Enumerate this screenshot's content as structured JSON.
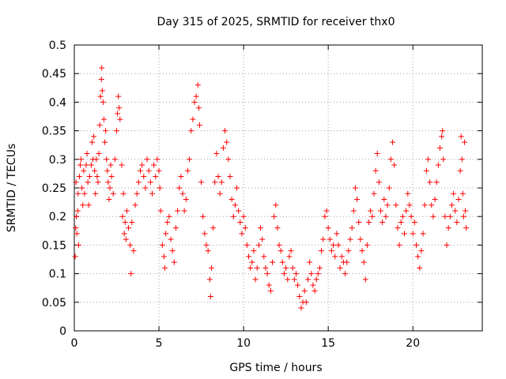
{
  "chart_data": {
    "type": "scatter",
    "title": "Day 315 of 2025, SRMTID for receiver thx0",
    "xlabel": "GPS time / hours",
    "ylabel": "SRMTID / TECUs",
    "xlim": [
      0,
      24.1
    ],
    "ylim": [
      0,
      0.5
    ],
    "xticks": [
      0,
      5,
      10,
      15,
      20
    ],
    "xtick_labels": [
      "0",
      "5",
      "10",
      "15",
      "20"
    ],
    "yticks": [
      0,
      0.05,
      0.1,
      0.15,
      0.2,
      0.25,
      0.3,
      0.35,
      0.4,
      0.45,
      0.5
    ],
    "ytick_labels": [
      "0",
      "0.05",
      "0.1",
      "0.15",
      "0.2",
      "0.25",
      "0.3",
      "0.35",
      "0.4",
      "0.45",
      "0.5"
    ],
    "grid": true,
    "marker": "+",
    "color": "#ff0000",
    "series": [
      {
        "points": [
          [
            0.05,
            0.13
          ],
          [
            0.08,
            0.18
          ],
          [
            0.1,
            0.26
          ],
          [
            0.12,
            0.2
          ],
          [
            0.15,
            0.17
          ],
          [
            0.2,
            0.21
          ],
          [
            0.22,
            0.24
          ],
          [
            0.25,
            0.15
          ],
          [
            0.3,
            0.27
          ],
          [
            0.35,
            0.29
          ],
          [
            0.4,
            0.3
          ],
          [
            0.45,
            0.25
          ],
          [
            0.5,
            0.22
          ],
          [
            0.55,
            0.28
          ],
          [
            0.6,
            0.24
          ],
          [
            0.7,
            0.29
          ],
          [
            0.75,
            0.31
          ],
          [
            0.8,
            0.26
          ],
          [
            0.85,
            0.22
          ],
          [
            0.9,
            0.27
          ],
          [
            1.0,
            0.29
          ],
          [
            1.05,
            0.33
          ],
          [
            1.1,
            0.3
          ],
          [
            1.15,
            0.34
          ],
          [
            1.2,
            0.28
          ],
          [
            1.25,
            0.24
          ],
          [
            1.3,
            0.3
          ],
          [
            1.35,
            0.27
          ],
          [
            1.4,
            0.26
          ],
          [
            1.45,
            0.31
          ],
          [
            1.5,
            0.36
          ],
          [
            1.55,
            0.41
          ],
          [
            1.6,
            0.44
          ],
          [
            1.62,
            0.46
          ],
          [
            1.65,
            0.42
          ],
          [
            1.7,
            0.4
          ],
          [
            1.75,
            0.37
          ],
          [
            1.8,
            0.33
          ],
          [
            1.85,
            0.35
          ],
          [
            1.9,
            0.3
          ],
          [
            1.95,
            0.28
          ],
          [
            2.0,
            0.26
          ],
          [
            2.05,
            0.23
          ],
          [
            2.1,
            0.25
          ],
          [
            2.15,
            0.29
          ],
          [
            2.2,
            0.27
          ],
          [
            2.3,
            0.24
          ],
          [
            2.4,
            0.3
          ],
          [
            2.5,
            0.35
          ],
          [
            2.55,
            0.38
          ],
          [
            2.6,
            0.41
          ],
          [
            2.65,
            0.39
          ],
          [
            2.7,
            0.37
          ],
          [
            2.8,
            0.29
          ],
          [
            2.85,
            0.2
          ],
          [
            2.9,
            0.24
          ],
          [
            2.95,
            0.17
          ],
          [
            3.0,
            0.19
          ],
          [
            3.05,
            0.16
          ],
          [
            3.1,
            0.21
          ],
          [
            3.2,
            0.18
          ],
          [
            3.3,
            0.15
          ],
          [
            3.35,
            0.1
          ],
          [
            3.4,
            0.19
          ],
          [
            3.5,
            0.14
          ],
          [
            3.6,
            0.22
          ],
          [
            3.7,
            0.24
          ],
          [
            3.8,
            0.26
          ],
          [
            3.9,
            0.28
          ],
          [
            4.0,
            0.29
          ],
          [
            4.1,
            0.27
          ],
          [
            4.2,
            0.25
          ],
          [
            4.3,
            0.3
          ],
          [
            4.4,
            0.28
          ],
          [
            4.5,
            0.26
          ],
          [
            4.6,
            0.24
          ],
          [
            4.7,
            0.29
          ],
          [
            4.8,
            0.27
          ],
          [
            4.9,
            0.3
          ],
          [
            5.0,
            0.28
          ],
          [
            5.05,
            0.25
          ],
          [
            5.1,
            0.21
          ],
          [
            5.2,
            0.15
          ],
          [
            5.3,
            0.13
          ],
          [
            5.35,
            0.11
          ],
          [
            5.4,
            0.17
          ],
          [
            5.5,
            0.19
          ],
          [
            5.6,
            0.2
          ],
          [
            5.7,
            0.16
          ],
          [
            5.8,
            0.14
          ],
          [
            5.9,
            0.12
          ],
          [
            6.0,
            0.18
          ],
          [
            6.1,
            0.21
          ],
          [
            6.2,
            0.25
          ],
          [
            6.3,
            0.27
          ],
          [
            6.4,
            0.24
          ],
          [
            6.5,
            0.21
          ],
          [
            6.6,
            0.23
          ],
          [
            6.7,
            0.28
          ],
          [
            6.8,
            0.3
          ],
          [
            6.9,
            0.35
          ],
          [
            7.0,
            0.37
          ],
          [
            7.1,
            0.4
          ],
          [
            7.2,
            0.41
          ],
          [
            7.3,
            0.43
          ],
          [
            7.35,
            0.39
          ],
          [
            7.4,
            0.36
          ],
          [
            7.5,
            0.26
          ],
          [
            7.6,
            0.2
          ],
          [
            7.7,
            0.17
          ],
          [
            7.8,
            0.15
          ],
          [
            7.9,
            0.14
          ],
          [
            8.0,
            0.09
          ],
          [
            8.05,
            0.06
          ],
          [
            8.1,
            0.11
          ],
          [
            8.2,
            0.18
          ],
          [
            8.3,
            0.26
          ],
          [
            8.4,
            0.31
          ],
          [
            8.5,
            0.27
          ],
          [
            8.6,
            0.24
          ],
          [
            8.7,
            0.26
          ],
          [
            8.8,
            0.32
          ],
          [
            8.9,
            0.35
          ],
          [
            9.0,
            0.33
          ],
          [
            9.1,
            0.3
          ],
          [
            9.2,
            0.27
          ],
          [
            9.3,
            0.23
          ],
          [
            9.4,
            0.2
          ],
          [
            9.5,
            0.22
          ],
          [
            9.6,
            0.25
          ],
          [
            9.7,
            0.21
          ],
          [
            9.8,
            0.19
          ],
          [
            9.9,
            0.17
          ],
          [
            10.0,
            0.2
          ],
          [
            10.1,
            0.18
          ],
          [
            10.2,
            0.15
          ],
          [
            10.3,
            0.13
          ],
          [
            10.4,
            0.11
          ],
          [
            10.5,
            0.12
          ],
          [
            10.6,
            0.14
          ],
          [
            10.7,
            0.09
          ],
          [
            10.8,
            0.11
          ],
          [
            10.9,
            0.15
          ],
          [
            11.0,
            0.18
          ],
          [
            11.1,
            0.16
          ],
          [
            11.2,
            0.13
          ],
          [
            11.3,
            0.11
          ],
          [
            11.4,
            0.1
          ],
          [
            11.5,
            0.08
          ],
          [
            11.6,
            0.07
          ],
          [
            11.7,
            0.12
          ],
          [
            11.8,
            0.2
          ],
          [
            11.9,
            0.22
          ],
          [
            12.0,
            0.18
          ],
          [
            12.1,
            0.15
          ],
          [
            12.2,
            0.14
          ],
          [
            12.3,
            0.12
          ],
          [
            12.4,
            0.1
          ],
          [
            12.5,
            0.11
          ],
          [
            12.6,
            0.09
          ],
          [
            12.7,
            0.13
          ],
          [
            12.8,
            0.14
          ],
          [
            12.9,
            0.11
          ],
          [
            13.0,
            0.09
          ],
          [
            13.1,
            0.1
          ],
          [
            13.2,
            0.08
          ],
          [
            13.3,
            0.06
          ],
          [
            13.4,
            0.04
          ],
          [
            13.5,
            0.05
          ],
          [
            13.6,
            0.07
          ],
          [
            13.7,
            0.05
          ],
          [
            13.8,
            0.09
          ],
          [
            13.9,
            0.12
          ],
          [
            14.0,
            0.1
          ],
          [
            14.1,
            0.08
          ],
          [
            14.2,
            0.07
          ],
          [
            14.3,
            0.09
          ],
          [
            14.4,
            0.1
          ],
          [
            14.5,
            0.11
          ],
          [
            14.6,
            0.14
          ],
          [
            14.7,
            0.16
          ],
          [
            14.8,
            0.2
          ],
          [
            14.9,
            0.21
          ],
          [
            15.0,
            0.18
          ],
          [
            15.1,
            0.16
          ],
          [
            15.2,
            0.14
          ],
          [
            15.3,
            0.15
          ],
          [
            15.4,
            0.13
          ],
          [
            15.5,
            0.17
          ],
          [
            15.6,
            0.15
          ],
          [
            15.7,
            0.11
          ],
          [
            15.8,
            0.13
          ],
          [
            15.9,
            0.12
          ],
          [
            16.0,
            0.1
          ],
          [
            16.1,
            0.12
          ],
          [
            16.2,
            0.14
          ],
          [
            16.3,
            0.16
          ],
          [
            16.4,
            0.18
          ],
          [
            16.5,
            0.21
          ],
          [
            16.6,
            0.25
          ],
          [
            16.7,
            0.23
          ],
          [
            16.8,
            0.19
          ],
          [
            16.9,
            0.16
          ],
          [
            17.0,
            0.14
          ],
          [
            17.1,
            0.12
          ],
          [
            17.2,
            0.09
          ],
          [
            17.3,
            0.15
          ],
          [
            17.4,
            0.19
          ],
          [
            17.5,
            0.21
          ],
          [
            17.6,
            0.2
          ],
          [
            17.7,
            0.24
          ],
          [
            17.8,
            0.28
          ],
          [
            17.9,
            0.31
          ],
          [
            18.0,
            0.26
          ],
          [
            18.1,
            0.21
          ],
          [
            18.2,
            0.19
          ],
          [
            18.3,
            0.23
          ],
          [
            18.4,
            0.2
          ],
          [
            18.5,
            0.22
          ],
          [
            18.6,
            0.25
          ],
          [
            18.7,
            0.3
          ],
          [
            18.8,
            0.33
          ],
          [
            18.9,
            0.29
          ],
          [
            19.0,
            0.22
          ],
          [
            19.1,
            0.18
          ],
          [
            19.2,
            0.15
          ],
          [
            19.3,
            0.19
          ],
          [
            19.4,
            0.2
          ],
          [
            19.5,
            0.17
          ],
          [
            19.6,
            0.21
          ],
          [
            19.7,
            0.24
          ],
          [
            19.8,
            0.22
          ],
          [
            19.9,
            0.2
          ],
          [
            20.0,
            0.17
          ],
          [
            20.1,
            0.19
          ],
          [
            20.2,
            0.15
          ],
          [
            20.3,
            0.13
          ],
          [
            20.4,
            0.11
          ],
          [
            20.5,
            0.14
          ],
          [
            20.6,
            0.17
          ],
          [
            20.7,
            0.22
          ],
          [
            20.8,
            0.28
          ],
          [
            20.9,
            0.3
          ],
          [
            21.0,
            0.26
          ],
          [
            21.1,
            0.22
          ],
          [
            21.2,
            0.2
          ],
          [
            21.3,
            0.23
          ],
          [
            21.4,
            0.26
          ],
          [
            21.5,
            0.29
          ],
          [
            21.6,
            0.32
          ],
          [
            21.7,
            0.34
          ],
          [
            21.75,
            0.35
          ],
          [
            21.8,
            0.3
          ],
          [
            21.9,
            0.2
          ],
          [
            22.0,
            0.15
          ],
          [
            22.1,
            0.18
          ],
          [
            22.2,
            0.2
          ],
          [
            22.3,
            0.22
          ],
          [
            22.4,
            0.24
          ],
          [
            22.5,
            0.21
          ],
          [
            22.6,
            0.19
          ],
          [
            22.7,
            0.23
          ],
          [
            22.8,
            0.28
          ],
          [
            22.85,
            0.34
          ],
          [
            22.9,
            0.3
          ],
          [
            22.95,
            0.24
          ],
          [
            23.0,
            0.2
          ],
          [
            23.05,
            0.33
          ],
          [
            23.1,
            0.21
          ],
          [
            23.15,
            0.18
          ]
        ]
      }
    ]
  }
}
